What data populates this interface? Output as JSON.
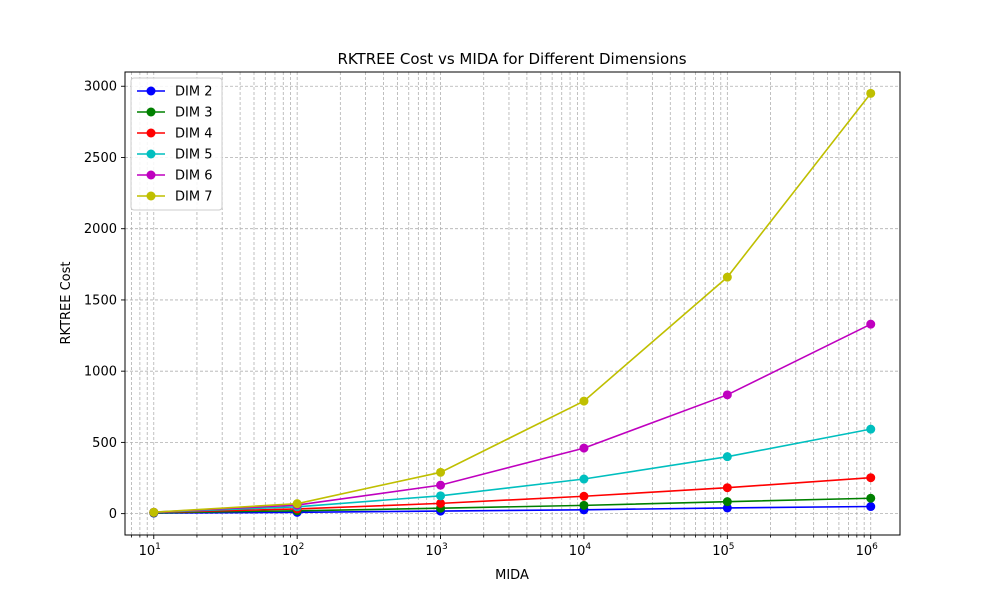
{
  "chart_data": {
    "type": "line",
    "title": "RKTREE Cost vs MIDA for Different Dimensions",
    "xlabel": "MIDA",
    "ylabel": "RKTREE Cost",
    "xscale": "log",
    "x": [
      10,
      100,
      1000,
      10000,
      100000,
      1000000
    ],
    "xlim": [
      6.3,
      1600000
    ],
    "ylim": [
      -150,
      3100
    ],
    "xticks": [
      10,
      100,
      1000,
      10000,
      100000,
      1000000
    ],
    "xtick_labels": [
      {
        "base": "10",
        "exp": "1"
      },
      {
        "base": "10",
        "exp": "2"
      },
      {
        "base": "10",
        "exp": "3"
      },
      {
        "base": "10",
        "exp": "4"
      },
      {
        "base": "10",
        "exp": "5"
      },
      {
        "base": "10",
        "exp": "6"
      }
    ],
    "yticks": [
      0,
      500,
      1000,
      1500,
      2000,
      2500,
      3000
    ],
    "ytick_labels": [
      "0",
      "500",
      "1000",
      "1500",
      "2000",
      "2500",
      "3000"
    ],
    "grid": true,
    "grid_which": "both",
    "legend_position": "upper-left",
    "series": [
      {
        "name": "DIM 2",
        "color": "#0000ff",
        "values": [
          4,
          9,
          18,
          27,
          40,
          50
        ]
      },
      {
        "name": "DIM 3",
        "color": "#008000",
        "values": [
          6,
          20,
          38,
          58,
          84,
          108
        ]
      },
      {
        "name": "DIM 4",
        "color": "#ff0000",
        "values": [
          8,
          33,
          72,
          122,
          182,
          252
        ]
      },
      {
        "name": "DIM 5",
        "color": "#00bfbf",
        "values": [
          9,
          48,
          125,
          243,
          400,
          593
        ]
      },
      {
        "name": "DIM 6",
        "color": "#bf00bf",
        "values": [
          10,
          60,
          200,
          460,
          834,
          1330
        ]
      },
      {
        "name": "DIM 7",
        "color": "#bfbf00",
        "values": [
          10,
          70,
          290,
          790,
          1660,
          2950
        ]
      }
    ]
  }
}
